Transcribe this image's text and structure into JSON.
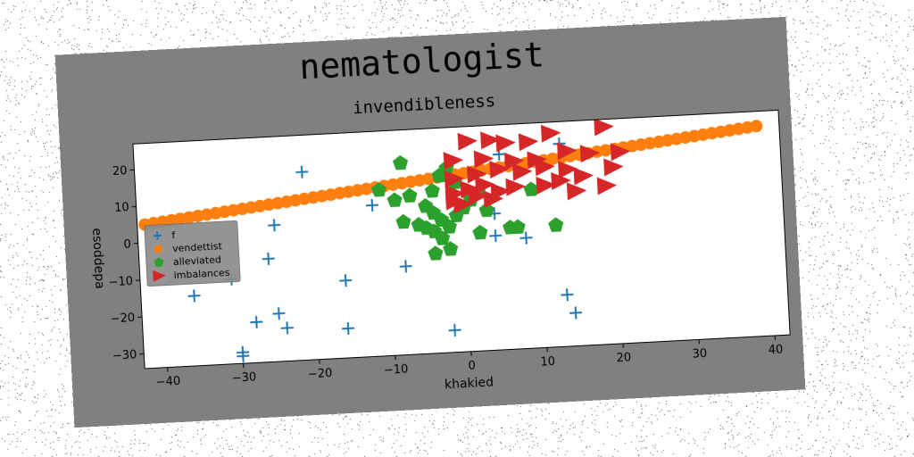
{
  "chart_data": {
    "type": "scatter",
    "title": "nematologist",
    "subtitle": "invendibleness",
    "xlabel": "khakied",
    "ylabel": "esoddepa",
    "xlim": [
      -43,
      42
    ],
    "ylim": [
      -34,
      27
    ],
    "xticks": [
      -40,
      -30,
      -20,
      -10,
      0,
      10,
      20,
      30,
      40
    ],
    "yticks": [
      -30,
      -20,
      -10,
      0,
      10,
      20
    ],
    "grid": false,
    "legend_position": "left",
    "series": [
      {
        "name": "f",
        "marker": "plus",
        "color": "#1f77b4",
        "points": [
          [
            -21,
            17
          ],
          [
            -12,
            7
          ],
          [
            -25,
            3
          ],
          [
            -26,
            -6
          ],
          [
            -31,
            -11
          ],
          [
            -36,
            -15
          ],
          [
            -16,
            -13
          ],
          [
            -25,
            -21
          ],
          [
            -28,
            -23
          ],
          [
            -24,
            -25
          ],
          [
            -30,
            -31
          ],
          [
            -30,
            -32
          ],
          [
            -16,
            -26
          ],
          [
            -8,
            -10
          ],
          [
            -2,
            -28
          ],
          [
            4,
            3
          ],
          [
            4,
            -3
          ],
          [
            8,
            -4
          ],
          [
            13,
            21
          ],
          [
            13,
            -20
          ],
          [
            14,
            -25
          ],
          [
            5,
            19
          ]
        ]
      },
      {
        "name": "vendettist",
        "marker": "circle",
        "color": "#ff7f0e",
        "line": {
          "x_start": -42,
          "y_start": 5,
          "x_end": 39,
          "y_end": 23,
          "count": 70
        }
      },
      {
        "name": "alleviated",
        "marker": "pentagon",
        "color": "#2ca02c",
        "points": [
          [
            -8,
            18
          ],
          [
            -11,
            11
          ],
          [
            -9,
            8
          ],
          [
            -7,
            9
          ],
          [
            -4,
            10
          ],
          [
            -3,
            14
          ],
          [
            -2,
            16
          ],
          [
            -5,
            6
          ],
          [
            -4,
            4
          ],
          [
            -3,
            2
          ],
          [
            -8,
            2
          ],
          [
            -6,
            1
          ],
          [
            -5,
            0
          ],
          [
            -4,
            -1
          ],
          [
            -3,
            -3
          ],
          [
            -2,
            0
          ],
          [
            -1,
            3
          ],
          [
            0,
            5
          ],
          [
            1,
            8
          ],
          [
            2,
            9
          ],
          [
            -2,
            -6
          ],
          [
            -4,
            -7
          ],
          [
            2,
            -2
          ],
          [
            6,
            -1
          ],
          [
            7,
            -1
          ],
          [
            12,
            -1
          ],
          [
            9,
            9
          ],
          [
            -1,
            12
          ],
          [
            1,
            7
          ],
          [
            3,
            4
          ]
        ]
      },
      {
        "name": "imbalances",
        "marker": "triangle-right",
        "color": "#d62728",
        "points": [
          [
            1,
            23
          ],
          [
            4,
            23
          ],
          [
            6,
            22
          ],
          [
            9,
            22
          ],
          [
            12,
            24
          ],
          [
            19,
            25
          ],
          [
            -1,
            18
          ],
          [
            3,
            18
          ],
          [
            7,
            17
          ],
          [
            10,
            17
          ],
          [
            14,
            19
          ],
          [
            17,
            18
          ],
          [
            21,
            18
          ],
          [
            -1,
            13
          ],
          [
            2,
            14
          ],
          [
            5,
            15
          ],
          [
            8,
            14
          ],
          [
            11,
            15
          ],
          [
            14,
            14
          ],
          [
            16,
            12
          ],
          [
            20,
            14
          ],
          [
            -1,
            9
          ],
          [
            1,
            10
          ],
          [
            3,
            11
          ],
          [
            5,
            9
          ],
          [
            7,
            10
          ],
          [
            11,
            10
          ],
          [
            13,
            11
          ],
          [
            15,
            8
          ],
          [
            19,
            9
          ],
          [
            0,
            6
          ],
          [
            -1,
            7
          ],
          [
            2,
            8
          ],
          [
            4,
            7
          ]
        ]
      }
    ]
  }
}
